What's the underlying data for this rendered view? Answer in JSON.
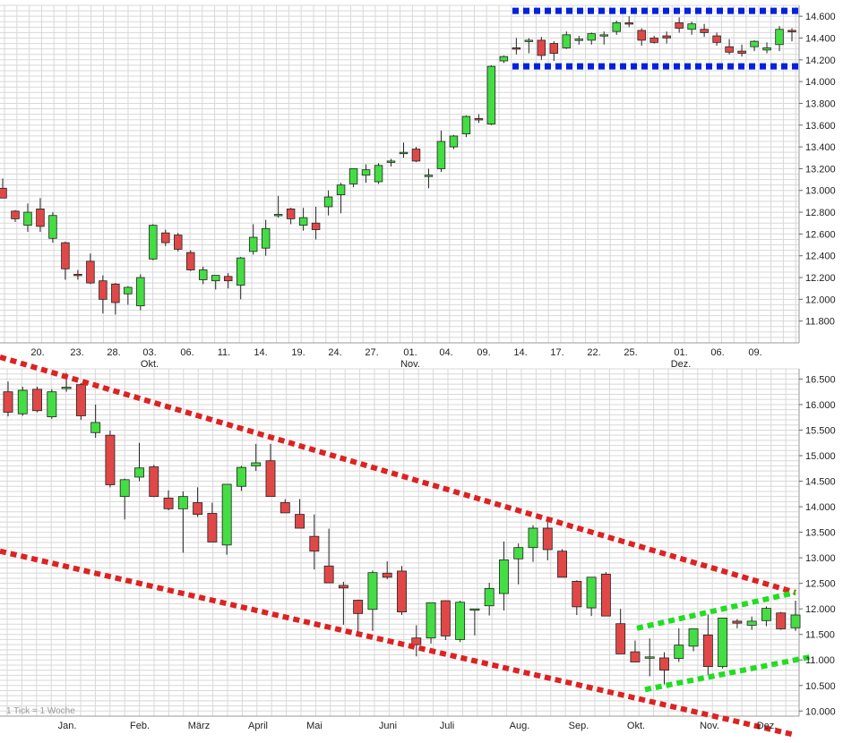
{
  "colors": {
    "up": "#44dd44",
    "down": "#e04848",
    "wick": "#222222",
    "grid": "#d8d8d8",
    "range_box": "#0022dd",
    "trend_red": "#dd2222",
    "trend_green": "#22dd22"
  },
  "chart_data": [
    {
      "type": "candlestick",
      "title": "",
      "grid": true,
      "y_tick_labels": [
        "11.800",
        "12.000",
        "12.200",
        "12.400",
        "12.600",
        "12.800",
        "13.000",
        "13.200",
        "13.400",
        "13.600",
        "13.800",
        "14.000",
        "14.200",
        "14.400",
        "14.600"
      ],
      "x_day_labels": [
        "20.",
        "23.",
        "28.",
        "03.",
        "06.",
        "11.",
        "14.",
        "19.",
        "24.",
        "27.",
        "01.",
        "04.",
        "09.",
        "14.",
        "17.",
        "22.",
        "25.",
        "01.",
        "06.",
        "09."
      ],
      "x_month_labels": [
        "Okt.",
        "Nov.",
        "Dez."
      ],
      "ylim": [
        11600,
        14700
      ],
      "candles": [
        {
          "o": 13020,
          "h": 13110,
          "l": 12950,
          "c": 12930
        },
        {
          "o": 12810,
          "h": 12820,
          "l": 12710,
          "c": 12740
        },
        {
          "o": 12680,
          "h": 12880,
          "l": 12620,
          "c": 12800
        },
        {
          "o": 12830,
          "h": 12930,
          "l": 12620,
          "c": 12670
        },
        {
          "o": 12560,
          "h": 12800,
          "l": 12520,
          "c": 12770
        },
        {
          "o": 12520,
          "h": 12530,
          "l": 12180,
          "c": 12280
        },
        {
          "o": 12230,
          "h": 12270,
          "l": 12180,
          "c": 12220
        },
        {
          "o": 12350,
          "h": 12420,
          "l": 12140,
          "c": 12150
        },
        {
          "o": 12170,
          "h": 12220,
          "l": 11870,
          "c": 12000
        },
        {
          "o": 12140,
          "h": 12150,
          "l": 11860,
          "c": 11970
        },
        {
          "o": 12050,
          "h": 12120,
          "l": 11950,
          "c": 12110
        },
        {
          "o": 11940,
          "h": 12230,
          "l": 11900,
          "c": 12200
        },
        {
          "o": 12370,
          "h": 12690,
          "l": 12360,
          "c": 12680
        },
        {
          "o": 12610,
          "h": 12640,
          "l": 12490,
          "c": 12520
        },
        {
          "o": 12590,
          "h": 12610,
          "l": 12440,
          "c": 12460
        },
        {
          "o": 12430,
          "h": 12450,
          "l": 12260,
          "c": 12270
        },
        {
          "o": 12180,
          "h": 12300,
          "l": 12140,
          "c": 12270
        },
        {
          "o": 12170,
          "h": 12220,
          "l": 12090,
          "c": 12220
        },
        {
          "o": 12210,
          "h": 12240,
          "l": 12100,
          "c": 12170
        },
        {
          "o": 12130,
          "h": 12390,
          "l": 12000,
          "c": 12380
        },
        {
          "o": 12440,
          "h": 12690,
          "l": 12410,
          "c": 12570
        },
        {
          "o": 12470,
          "h": 12730,
          "l": 12400,
          "c": 12650
        },
        {
          "o": 12780,
          "h": 12950,
          "l": 12750,
          "c": 12780
        },
        {
          "o": 12830,
          "h": 12840,
          "l": 12690,
          "c": 12740
        },
        {
          "o": 12680,
          "h": 12840,
          "l": 12630,
          "c": 12750
        },
        {
          "o": 12700,
          "h": 12850,
          "l": 12550,
          "c": 12640
        },
        {
          "o": 12850,
          "h": 13000,
          "l": 12770,
          "c": 12940
        },
        {
          "o": 12960,
          "h": 13070,
          "l": 12790,
          "c": 13050
        },
        {
          "o": 13060,
          "h": 13200,
          "l": 13030,
          "c": 13200
        },
        {
          "o": 13140,
          "h": 13240,
          "l": 13070,
          "c": 13190
        },
        {
          "o": 13080,
          "h": 13250,
          "l": 13060,
          "c": 13230
        },
        {
          "o": 13260,
          "h": 13290,
          "l": 13220,
          "c": 13270
        },
        {
          "o": 13350,
          "h": 13440,
          "l": 13300,
          "c": 13350
        },
        {
          "o": 13380,
          "h": 13400,
          "l": 13260,
          "c": 13270
        },
        {
          "o": 13140,
          "h": 13200,
          "l": 13020,
          "c": 13140
        },
        {
          "o": 13200,
          "h": 13550,
          "l": 13170,
          "c": 13450
        },
        {
          "o": 13400,
          "h": 13510,
          "l": 13380,
          "c": 13500
        },
        {
          "o": 13520,
          "h": 13690,
          "l": 13490,
          "c": 13680
        },
        {
          "o": 13660,
          "h": 13700,
          "l": 13620,
          "c": 13650
        },
        {
          "o": 13610,
          "h": 14150,
          "l": 13600,
          "c": 14140
        },
        {
          "o": 14190,
          "h": 14240,
          "l": 14170,
          "c": 14230
        },
        {
          "o": 14310,
          "h": 14400,
          "l": 14250,
          "c": 14300
        },
        {
          "o": 14380,
          "h": 14400,
          "l": 14260,
          "c": 14380
        },
        {
          "o": 14380,
          "h": 14410,
          "l": 14200,
          "c": 14240
        },
        {
          "o": 14350,
          "h": 14370,
          "l": 14190,
          "c": 14260
        },
        {
          "o": 14310,
          "h": 14460,
          "l": 14300,
          "c": 14430
        },
        {
          "o": 14390,
          "h": 14420,
          "l": 14340,
          "c": 14390
        },
        {
          "o": 14380,
          "h": 14450,
          "l": 14340,
          "c": 14440
        },
        {
          "o": 14420,
          "h": 14460,
          "l": 14340,
          "c": 14430
        },
        {
          "o": 14460,
          "h": 14560,
          "l": 14430,
          "c": 14540
        },
        {
          "o": 14540,
          "h": 14600,
          "l": 14500,
          "c": 14530
        },
        {
          "o": 14470,
          "h": 14490,
          "l": 14330,
          "c": 14380
        },
        {
          "o": 14400,
          "h": 14420,
          "l": 14350,
          "c": 14360
        },
        {
          "o": 14420,
          "h": 14460,
          "l": 14350,
          "c": 14400
        },
        {
          "o": 14540,
          "h": 14590,
          "l": 14450,
          "c": 14490
        },
        {
          "o": 14480,
          "h": 14550,
          "l": 14430,
          "c": 14530
        },
        {
          "o": 14480,
          "h": 14530,
          "l": 14410,
          "c": 14450
        },
        {
          "o": 14420,
          "h": 14450,
          "l": 14330,
          "c": 14360
        },
        {
          "o": 14320,
          "h": 14390,
          "l": 14250,
          "c": 14270
        },
        {
          "o": 14280,
          "h": 14340,
          "l": 14230,
          "c": 14260
        },
        {
          "o": 14320,
          "h": 14380,
          "l": 14280,
          "c": 14370
        },
        {
          "o": 14290,
          "h": 14360,
          "l": 14260,
          "c": 14310
        },
        {
          "o": 14340,
          "h": 14510,
          "l": 14280,
          "c": 14480
        },
        {
          "o": 14470,
          "h": 14490,
          "l": 14370,
          "c": 14460
        }
      ],
      "range_lines": [
        {
          "value": 14650,
          "color_key": "range_box"
        },
        {
          "value": 14140,
          "color_key": "range_box"
        }
      ]
    },
    {
      "type": "candlestick",
      "title": "",
      "grid": true,
      "note": "1 Tick = 1 Woche",
      "y_tick_labels": [
        "10.000",
        "10.500",
        "11.000",
        "11.500",
        "12.000",
        "12.500",
        "13.000",
        "13.500",
        "14.000",
        "14.500",
        "15.000",
        "15.500",
        "16.000",
        "16.500"
      ],
      "x_month_labels": [
        "Jan.",
        "Feb.",
        "März",
        "April",
        "Mai",
        "Juni",
        "Juli",
        "Aug.",
        "Sep.",
        "Okt.",
        "Nov.",
        "Dez."
      ],
      "ylim": [
        9900,
        16700
      ],
      "candles": [
        {
          "o": 16250,
          "h": 16450,
          "l": 15770,
          "c": 15850
        },
        {
          "o": 15820,
          "h": 16350,
          "l": 15780,
          "c": 16280
        },
        {
          "o": 16300,
          "h": 16350,
          "l": 15850,
          "c": 15880
        },
        {
          "o": 15760,
          "h": 16300,
          "l": 15720,
          "c": 16250
        },
        {
          "o": 16320,
          "h": 16620,
          "l": 16250,
          "c": 16340
        },
        {
          "o": 16390,
          "h": 16420,
          "l": 15700,
          "c": 15780
        },
        {
          "o": 15450,
          "h": 16000,
          "l": 15350,
          "c": 15650
        },
        {
          "o": 15400,
          "h": 15490,
          "l": 14380,
          "c": 14430
        },
        {
          "o": 14200,
          "h": 14550,
          "l": 13750,
          "c": 14530
        },
        {
          "o": 14580,
          "h": 15250,
          "l": 14500,
          "c": 14760
        },
        {
          "o": 14780,
          "h": 14820,
          "l": 14190,
          "c": 14200
        },
        {
          "o": 14170,
          "h": 14320,
          "l": 13930,
          "c": 13960
        },
        {
          "o": 13960,
          "h": 14300,
          "l": 13100,
          "c": 14200
        },
        {
          "o": 14080,
          "h": 14380,
          "l": 13800,
          "c": 13850
        },
        {
          "o": 13870,
          "h": 14080,
          "l": 13350,
          "c": 13310
        },
        {
          "o": 13250,
          "h": 14440,
          "l": 13060,
          "c": 14440
        },
        {
          "o": 14400,
          "h": 14800,
          "l": 14310,
          "c": 14770
        },
        {
          "o": 14800,
          "h": 15230,
          "l": 14700,
          "c": 14860
        },
        {
          "o": 14900,
          "h": 15230,
          "l": 14200,
          "c": 14200
        },
        {
          "o": 14080,
          "h": 14150,
          "l": 13930,
          "c": 13880
        },
        {
          "o": 13850,
          "h": 14150,
          "l": 13620,
          "c": 13580
        },
        {
          "o": 13420,
          "h": 13850,
          "l": 12770,
          "c": 13130
        },
        {
          "o": 12840,
          "h": 13570,
          "l": 12520,
          "c": 12510
        },
        {
          "o": 12460,
          "h": 12530,
          "l": 11690,
          "c": 12410
        },
        {
          "o": 12170,
          "h": 12180,
          "l": 11490,
          "c": 11910
        },
        {
          "o": 11990,
          "h": 12750,
          "l": 11570,
          "c": 12710
        },
        {
          "o": 12700,
          "h": 12930,
          "l": 12580,
          "c": 12620
        },
        {
          "o": 12740,
          "h": 12840,
          "l": 11880,
          "c": 11940
        },
        {
          "o": 11430,
          "h": 11680,
          "l": 11070,
          "c": 11300
        },
        {
          "o": 11430,
          "h": 12100,
          "l": 11320,
          "c": 12120
        },
        {
          "o": 12160,
          "h": 12170,
          "l": 11390,
          "c": 11470
        },
        {
          "o": 11400,
          "h": 12160,
          "l": 11350,
          "c": 12130
        },
        {
          "o": 11990,
          "h": 12000,
          "l": 11480,
          "c": 12000
        },
        {
          "o": 12060,
          "h": 12510,
          "l": 11870,
          "c": 12400
        },
        {
          "o": 12300,
          "h": 13320,
          "l": 11970,
          "c": 12960
        },
        {
          "o": 12980,
          "h": 13280,
          "l": 12480,
          "c": 13200
        },
        {
          "o": 13200,
          "h": 13640,
          "l": 12920,
          "c": 13580
        },
        {
          "o": 13580,
          "h": 13730,
          "l": 12950,
          "c": 13160
        },
        {
          "o": 13130,
          "h": 13170,
          "l": 12670,
          "c": 12620
        },
        {
          "o": 12540,
          "h": 12560,
          "l": 11880,
          "c": 12040
        },
        {
          "o": 12020,
          "h": 12620,
          "l": 11860,
          "c": 12620
        },
        {
          "o": 12680,
          "h": 12720,
          "l": 11860,
          "c": 11860
        },
        {
          "o": 11710,
          "h": 12000,
          "l": 11170,
          "c": 11120
        },
        {
          "o": 11160,
          "h": 11380,
          "l": 10960,
          "c": 10960
        },
        {
          "o": 11060,
          "h": 11420,
          "l": 10680,
          "c": 11060
        },
        {
          "o": 11040,
          "h": 11150,
          "l": 10520,
          "c": 10800
        },
        {
          "o": 11030,
          "h": 11620,
          "l": 10960,
          "c": 11290
        },
        {
          "o": 11270,
          "h": 11560,
          "l": 11170,
          "c": 11610
        },
        {
          "o": 11490,
          "h": 11890,
          "l": 10700,
          "c": 10870
        },
        {
          "o": 10870,
          "h": 11820,
          "l": 10830,
          "c": 11820
        },
        {
          "o": 11760,
          "h": 11800,
          "l": 11620,
          "c": 11720
        },
        {
          "o": 11680,
          "h": 11850,
          "l": 11590,
          "c": 11760
        },
        {
          "o": 11770,
          "h": 12050,
          "l": 11660,
          "c": 12010
        },
        {
          "o": 11920,
          "h": 11940,
          "l": 11590,
          "c": 11610
        },
        {
          "o": 11630,
          "h": 12160,
          "l": 11570,
          "c": 11880
        }
      ],
      "trend_lines": [
        {
          "x1": 0,
          "y1": 16930,
          "x2": 888,
          "y2": 12320,
          "color_key": "trend_red"
        },
        {
          "x1": 0,
          "y1": 13130,
          "x2": 888,
          "y2": 9530,
          "color_key": "trend_red"
        },
        {
          "x1": 711,
          "y1": 11620,
          "x2": 888,
          "y2": 12320,
          "color_key": "trend_green"
        },
        {
          "x1": 720,
          "y1": 10420,
          "x2": 905,
          "y2": 11060,
          "color_key": "trend_green"
        }
      ]
    }
  ]
}
